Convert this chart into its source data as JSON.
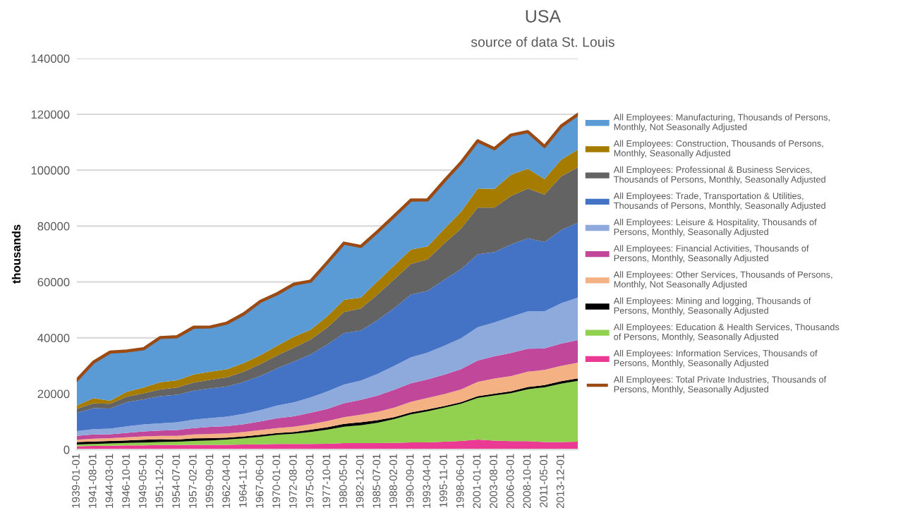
{
  "chart_data": {
    "type": "area",
    "stacked": true,
    "title": "USA",
    "subtitle": "source of data St. Louis",
    "ylabel": "thousands",
    "categories": [
      "1939-01-01",
      "1941-08-01",
      "1944-03-01",
      "1946-10-01",
      "1949-05-01",
      "1951-12-01",
      "1954-07-01",
      "1957-02-01",
      "1959-09-01",
      "1962-04-01",
      "1964-11-01",
      "1967-06-01",
      "1970-01-01",
      "1972-08-01",
      "1975-03-01",
      "1977-10-01",
      "1980-05-01",
      "1982-12-01",
      "1985-07-01",
      "1988-02-01",
      "1990-09-01",
      "1993-04-01",
      "1995-11-01",
      "1998-06-01",
      "2001-01-01",
      "2003-08-01",
      "2006-03-01",
      "2008-10-01",
      "2011-05-01",
      "2013-12-01",
      null
    ],
    "ylim": [
      0,
      140000
    ],
    "yticks": [
      0,
      20000,
      40000,
      60000,
      80000,
      100000,
      120000,
      140000
    ],
    "grid": "y",
    "legend": "right",
    "series": [
      {
        "name": "All Employees: Information Services, Thousands of Persons, Monthly, Seasonally Adjusted",
        "color": "#ea3a94",
        "values": [
          1200,
          1300,
          1400,
          1500,
          1500,
          1600,
          1600,
          1700,
          1700,
          1700,
          1800,
          1900,
          2000,
          2000,
          2000,
          2100,
          2300,
          2300,
          2300,
          2400,
          2600,
          2600,
          2800,
          3100,
          3600,
          3200,
          3000,
          3000,
          2700,
          2700,
          2800
        ]
      },
      {
        "name": "All Employees: Education & Health Services, Thousands of Persons, Monthly, Seasonally Adjusted",
        "color": "#92d050",
        "values": [
          600,
          700,
          800,
          900,
          1000,
          1100,
          1200,
          1400,
          1600,
          1900,
          2200,
          2700,
          3300,
          3700,
          4300,
          5000,
          5900,
          6400,
          7300,
          8500,
          10000,
          11100,
          12200,
          13300,
          14900,
          16200,
          17200,
          18600,
          19600,
          20900,
          21800
        ]
      },
      {
        "name": "All Employees: Mining and logging, Thousands of Persons, Monthly, Seasonally Adjusted",
        "color": "#000000",
        "values": [
          900,
          900,
          900,
          900,
          1000,
          1000,
          800,
          900,
          800,
          700,
          700,
          700,
          600,
          600,
          800,
          900,
          1000,
          1100,
          900,
          700,
          700,
          700,
          600,
          600,
          600,
          600,
          700,
          800,
          800,
          900,
          900
        ]
      },
      {
        "name": "All Employees: Other Services, Thousands of Persons, Monthly, Not Seasonally Adjusted",
        "color": "#f4b183",
        "values": [
          800,
          1000,
          1000,
          1100,
          1200,
          1200,
          1300,
          1400,
          1500,
          1500,
          1600,
          1700,
          1800,
          1900,
          2000,
          2200,
          2400,
          2700,
          3000,
          3400,
          3800,
          4100,
          4300,
          4500,
          5100,
          5400,
          5400,
          5500,
          5400,
          5500,
          5600
        ]
      },
      {
        "name": "All Employees: Financial Activities, Thousands of Persons, Monthly, Seasonally Adjusted",
        "color": "#c0479a",
        "values": [
          1400,
          1500,
          1400,
          1600,
          1800,
          1900,
          2100,
          2300,
          2500,
          2600,
          2800,
          3100,
          3500,
          3700,
          4100,
          4400,
          5000,
          5300,
          5800,
          6400,
          6600,
          6600,
          6900,
          7300,
          7700,
          8000,
          8300,
          8200,
          7700,
          7900,
          8100
        ]
      },
      {
        "name": "All Employees: Leisure & Hospitality, Thousands of Persons, Monthly, Seasonally Adjusted",
        "color": "#8ea9db",
        "values": [
          1700,
          1900,
          2000,
          2300,
          2500,
          2600,
          2800,
          3000,
          3200,
          3400,
          3700,
          4000,
          4600,
          5000,
          5500,
          6200,
          6700,
          6900,
          7800,
          8600,
          9300,
          9600,
          10400,
          11000,
          11900,
          12100,
          12900,
          13400,
          13300,
          14500,
          15200
        ]
      },
      {
        "name": "All Employees: Trade, Transportation & Utilities, Thousands of Persons, Monthly, Seasonally Adjusted",
        "color": "#4472c4",
        "values": [
          6500,
          7500,
          7200,
          8700,
          9000,
          9700,
          9800,
          10400,
          10600,
          10800,
          11400,
          12300,
          13300,
          14600,
          15400,
          16800,
          18400,
          17900,
          19200,
          20600,
          22500,
          22100,
          23600,
          24800,
          26100,
          25200,
          25900,
          26100,
          24800,
          26200,
          26800
        ]
      },
      {
        "name": "All Employees: Professional & Business Services, Thousands of Persons, Monthly, Seasonally Adjusted",
        "color": "#636363",
        "values": [
          1500,
          1700,
          1700,
          1900,
          2100,
          2400,
          2600,
          2900,
          3100,
          3300,
          3700,
          4200,
          4600,
          5000,
          5300,
          6100,
          7500,
          7900,
          9200,
          10300,
          10900,
          11300,
          13000,
          14500,
          16700,
          15900,
          17400,
          17800,
          17000,
          19200,
          19800
        ]
      },
      {
        "name": "All Employees: Construction, Thousands of Persons, Monthly, Seasonally Adjusted",
        "color": "#a57c00",
        "values": [
          1200,
          1900,
          1100,
          1800,
          2100,
          2600,
          2600,
          2900,
          2900,
          2900,
          3100,
          3200,
          3500,
          3900,
          3500,
          4000,
          4400,
          3900,
          4700,
          5000,
          5200,
          4600,
          5200,
          6000,
          6800,
          6700,
          7600,
          7100,
          5500,
          6000,
          6400
        ]
      },
      {
        "name": "All Employees: Manufacturing, Thousands of Persons, Monthly, Not Seasonally Adjusted",
        "color": "#5b9bd5",
        "values": [
          9100,
          12900,
          17400,
          14600,
          13900,
          16000,
          15600,
          16900,
          16000,
          16500,
          17600,
          19300,
          18600,
          18800,
          17400,
          19300,
          20300,
          18300,
          17800,
          17700,
          17700,
          16700,
          17200,
          17600,
          17100,
          14400,
          14200,
          13300,
          11700,
          12000,
          12600
        ]
      },
      {
        "name": "All Employees: Total Private Industries, Thousands of Persons, Monthly, Seasonally Adjusted",
        "type": "line",
        "color": "#9c4a14",
        "values": [
          24900,
          31300,
          34900,
          35300,
          36100,
          40100,
          40400,
          43800,
          43900,
          45300,
          48600,
          53100,
          55800,
          59200,
          60300,
          67000,
          73900,
          72700,
          78000,
          83600,
          89300,
          89400,
          96200,
          102700,
          110500,
          107700,
          112600,
          113800,
          108500,
          115800,
          120000
        ]
      }
    ]
  }
}
